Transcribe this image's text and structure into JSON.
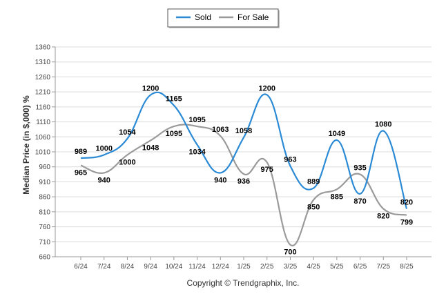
{
  "chart_data": {
    "type": "line",
    "categories": [
      "6/24",
      "7/24",
      "8/24",
      "9/24",
      "10/24",
      "11/24",
      "12/24",
      "1/25",
      "2/25",
      "3/25",
      "4/25",
      "5/25",
      "6/25",
      "7/25",
      "8/25"
    ],
    "series": [
      {
        "name": "Sold",
        "color": "#2a8ad6",
        "values": [
          989,
          1000,
          1054,
          1200,
          1165,
          1034,
          940,
          1058,
          1200,
          963,
          889,
          1049,
          870,
          1080,
          820
        ]
      },
      {
        "name": "For Sale",
        "color": "#9a9a9a",
        "values": [
          965,
          940,
          1000,
          1048,
          1095,
          1095,
          1063,
          936,
          975,
          700,
          850,
          885,
          935,
          820,
          799
        ]
      }
    ],
    "ylabel": "Median Price (in $,000) %",
    "xlabel": "",
    "ylim": [
      660,
      1360
    ],
    "yticks": [
      660,
      710,
      760,
      810,
      860,
      910,
      960,
      1010,
      1060,
      1110,
      1160,
      1210,
      1260,
      1310,
      1360
    ],
    "grid": true,
    "legend_position": "top-center",
    "data_labels": true
  },
  "footer": {
    "copyright": "Copyright © Trendgraphix, Inc."
  }
}
